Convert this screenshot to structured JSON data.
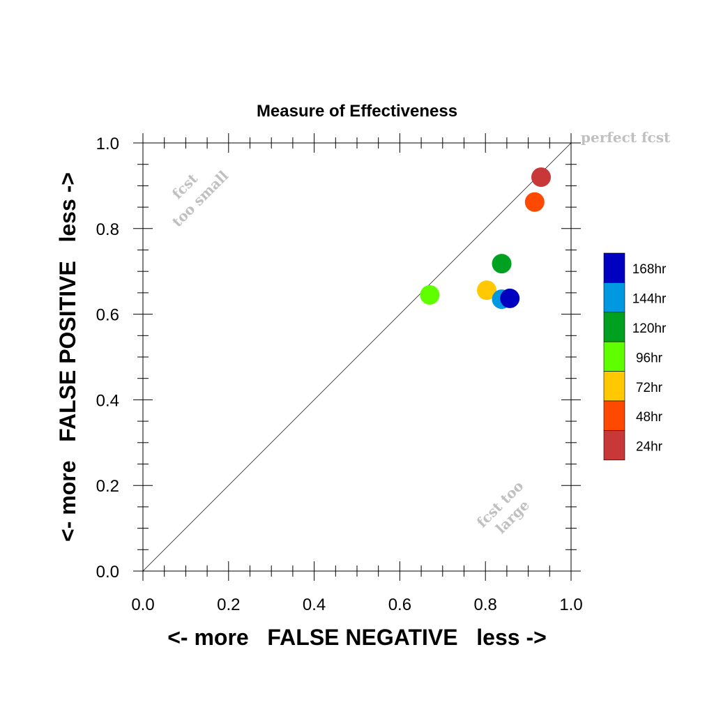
{
  "chart_data": {
    "type": "scatter",
    "title": "Measure of Effectiveness",
    "xlabel": "<- more   FALSE NEGATIVE   less ->",
    "ylabel": "<- more   FALSE POSITIVE   less ->",
    "xlim": [
      0,
      1
    ],
    "ylim": [
      0,
      1
    ],
    "xticks": [
      "0.0",
      "0.2",
      "0.4",
      "0.6",
      "0.8",
      "1.0"
    ],
    "yticks": [
      "0.0",
      "0.2",
      "0.4",
      "0.6",
      "0.8",
      "1.0"
    ],
    "grid": false,
    "legend_placement": "right",
    "reference_line": "diagonal y = x",
    "annotations": {
      "perfect": "perfect fcst",
      "small_line1": "fcst",
      "small_line2": "too small",
      "large_line1": "fcst too",
      "large_line2": "large"
    },
    "series": [
      {
        "name": "168hr",
        "color": "#0000c0",
        "x": 0.857,
        "y": 0.637
      },
      {
        "name": "144hr",
        "color": "#0098e0",
        "x": 0.838,
        "y": 0.635
      },
      {
        "name": "120hr",
        "color": "#00a020",
        "x": 0.838,
        "y": 0.718
      },
      {
        "name": "96hr",
        "color": "#60ff00",
        "x": 0.67,
        "y": 0.645
      },
      {
        "name": "72hr",
        "color": "#ffc800",
        "x": 0.803,
        "y": 0.656
      },
      {
        "name": "48hr",
        "color": "#ff4800",
        "x": 0.915,
        "y": 0.862
      },
      {
        "name": "24hr",
        "color": "#c83838",
        "x": 0.93,
        "y": 0.92
      }
    ]
  }
}
